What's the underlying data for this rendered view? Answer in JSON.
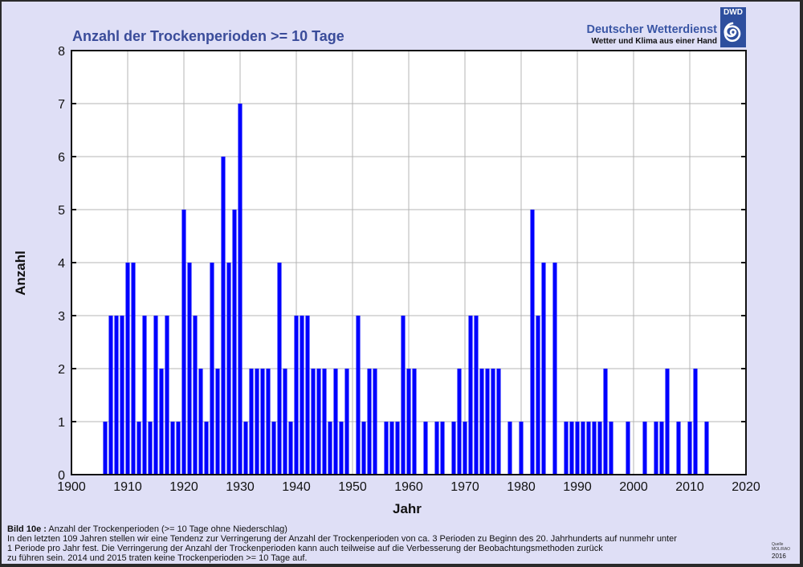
{
  "header": {
    "org_name": "Deutscher Wetterdienst",
    "org_slogan": "Wetter und Klima aus einer Hand",
    "logo_abbr": "DWD"
  },
  "caption": {
    "label": "Bild 10e :",
    "title": "Anzahl der Trockenperioden (>= 10 Tage ohne Niederschlag)",
    "line1": "In den letzten 109 Jahren stellen wir eine Tendenz zur Verringerung der Anzahl der Trockenperioden von ca. 3 Perioden zu Beginn des 20. Jahrhunderts auf nunmehr unter",
    "line2": "1 Periode pro Jahr fest. Die Verringerung der Anzahl der Trockenperioden kann auch teilweise auf die Verbesserung der Beobachtungsmethoden zurück",
    "line3": "zu führen sein. 2014 und 2015 traten keine Trockenperioden >= 10 Tage auf."
  },
  "source": {
    "label": "Quelle",
    "name": "MOL/RAO",
    "year": "2016"
  },
  "colors": {
    "bar": "#0000ff",
    "title": "#3a4c9a",
    "background": "#dfdff6",
    "grid": "#b4b4b4"
  },
  "chart_data": {
    "type": "bar",
    "title": "Anzahl der Trockenperioden >= 10 Tage",
    "xlabel": "Jahr",
    "ylabel": "Anzahl",
    "xlim": [
      1900,
      2020
    ],
    "ylim": [
      0,
      8
    ],
    "grid": true,
    "xticks": [
      "1900",
      "1910",
      "1920",
      "1930",
      "1940",
      "1950",
      "1960",
      "1970",
      "1980",
      "1990",
      "2000",
      "2010",
      "2020"
    ],
    "yticks": [
      "0",
      "1",
      "2",
      "3",
      "4",
      "5",
      "6",
      "7",
      "8"
    ],
    "x": [
      1906,
      1907,
      1908,
      1909,
      1910,
      1911,
      1912,
      1913,
      1914,
      1915,
      1916,
      1917,
      1918,
      1919,
      1920,
      1921,
      1922,
      1923,
      1924,
      1925,
      1926,
      1927,
      1928,
      1929,
      1930,
      1931,
      1932,
      1933,
      1934,
      1935,
      1936,
      1937,
      1938,
      1939,
      1940,
      1941,
      1942,
      1943,
      1944,
      1945,
      1946,
      1947,
      1948,
      1949,
      1950,
      1951,
      1952,
      1953,
      1954,
      1955,
      1956,
      1957,
      1958,
      1959,
      1960,
      1961,
      1962,
      1963,
      1964,
      1965,
      1966,
      1967,
      1968,
      1969,
      1970,
      1971,
      1972,
      1973,
      1974,
      1975,
      1976,
      1977,
      1978,
      1979,
      1980,
      1981,
      1982,
      1983,
      1984,
      1985,
      1986,
      1987,
      1988,
      1989,
      1990,
      1991,
      1992,
      1993,
      1994,
      1995,
      1996,
      1997,
      1998,
      1999,
      2000,
      2001,
      2002,
      2003,
      2004,
      2005,
      2006,
      2007,
      2008,
      2009,
      2010,
      2011,
      2012,
      2013
    ],
    "values": [
      1,
      3,
      3,
      3,
      4,
      4,
      1,
      3,
      1,
      3,
      2,
      3,
      1,
      1,
      5,
      4,
      3,
      2,
      1,
      4,
      2,
      6,
      4,
      5,
      7,
      1,
      2,
      2,
      2,
      2,
      1,
      4,
      2,
      1,
      3,
      3,
      3,
      2,
      2,
      2,
      1,
      2,
      1,
      2,
      0,
      3,
      1,
      2,
      2,
      0,
      1,
      1,
      1,
      3,
      2,
      2,
      0,
      1,
      0,
      1,
      1,
      0,
      1,
      2,
      1,
      3,
      3,
      2,
      2,
      2,
      2,
      0,
      1,
      0,
      1,
      0,
      5,
      3,
      4,
      0,
      4,
      0,
      1,
      1,
      1,
      1,
      1,
      1,
      1,
      2,
      1,
      0,
      0,
      1,
      0,
      0,
      1,
      0,
      1,
      1,
      2,
      0,
      1,
      0,
      1,
      2,
      0,
      1
    ]
  }
}
